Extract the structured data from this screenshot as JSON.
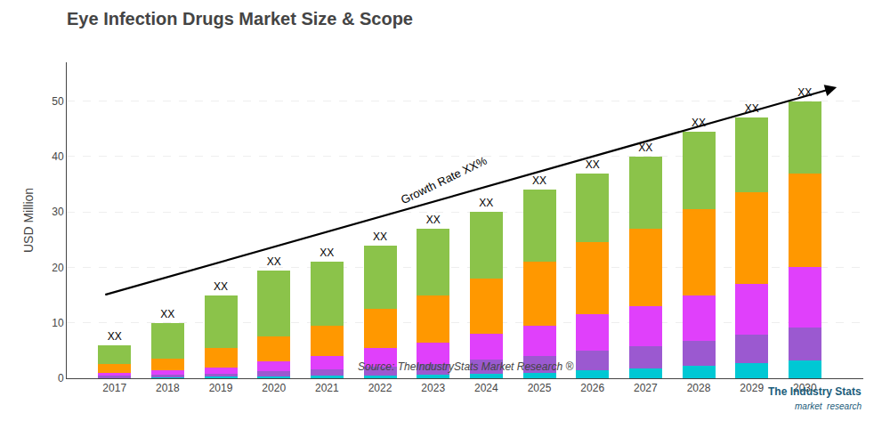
{
  "chart_data": {
    "type": "bar",
    "stacked": true,
    "title": "Eye Infection Drugs Market Size & Scope",
    "ylabel": "USD Million",
    "x": [
      2017,
      2018,
      2019,
      2020,
      2021,
      2022,
      2023,
      2024,
      2025,
      2026,
      2027,
      2028,
      2029,
      2030
    ],
    "series": [
      {
        "color": "#00c8d4",
        "values": [
          0.15,
          0.2,
          0.25,
          0.35,
          0.45,
          0.55,
          0.65,
          0.8,
          1.0,
          1.5,
          1.8,
          2.2,
          2.8,
          3.2
        ]
      },
      {
        "color": "#9b59d0",
        "values": [
          0.3,
          0.45,
          0.6,
          0.9,
          1.2,
          1.6,
          2.0,
          2.5,
          3.0,
          3.5,
          4.0,
          4.5,
          5.0,
          6.0
        ]
      },
      {
        "color": "#e040fb",
        "values": [
          0.55,
          0.75,
          1.15,
          1.75,
          2.35,
          3.35,
          3.85,
          4.7,
          5.5,
          6.5,
          7.2,
          8.3,
          9.2,
          10.8
        ]
      },
      {
        "color": "#ff9800",
        "values": [
          1.5,
          2.1,
          3.5,
          4.5,
          5.5,
          7.0,
          8.5,
          10.0,
          11.5,
          13.0,
          14.0,
          15.5,
          16.5,
          17.0
        ]
      },
      {
        "color": "#8bc34a",
        "values": [
          3.5,
          6.5,
          9.5,
          12.0,
          11.5,
          11.5,
          12.0,
          12.0,
          13.0,
          12.5,
          13.0,
          14.0,
          13.5,
          13.0
        ]
      }
    ],
    "bar_label": "XX",
    "xlim": [
      2016.1,
      2031.1
    ],
    "xticks": [
      2017,
      2018,
      2019,
      2020,
      2021,
      2022,
      2023,
      2024,
      2025,
      2026,
      2027,
      2028,
      2029,
      2030
    ],
    "ylim": [
      0,
      57
    ],
    "yticks": [
      0,
      10,
      20,
      30,
      40,
      50
    ],
    "grid": true,
    "annotations": [
      "Growth Rate XX%",
      "Source: TheIndustryStats Market Research ®",
      "The Industry Stats",
      "market  research"
    ]
  }
}
